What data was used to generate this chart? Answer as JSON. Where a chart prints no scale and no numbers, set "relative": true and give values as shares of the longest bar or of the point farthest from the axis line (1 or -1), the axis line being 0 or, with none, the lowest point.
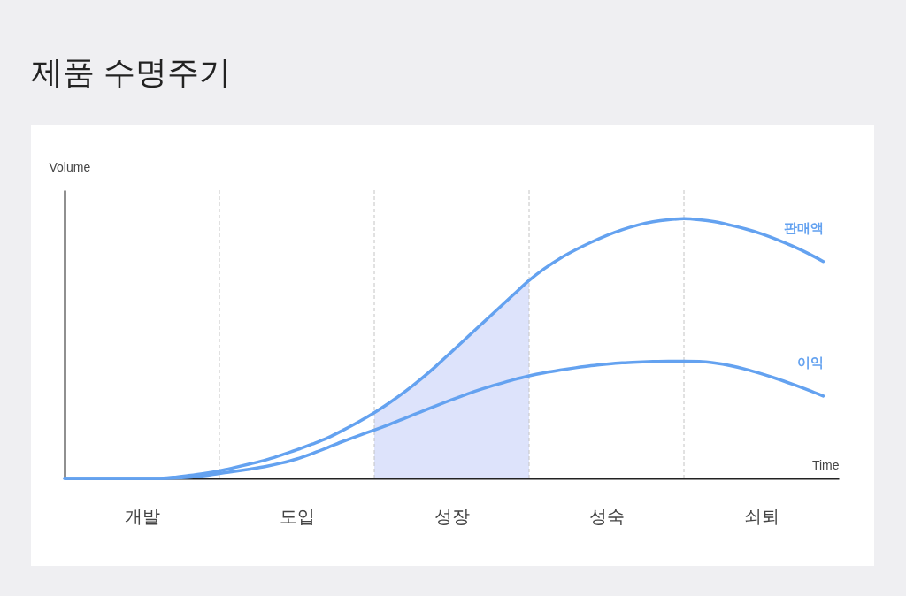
{
  "chart_data": {
    "type": "line",
    "title": "제품 수명주기",
    "xlabel": "Time",
    "ylabel": "Volume",
    "relative": true,
    "categories": [
      null,
      null,
      null,
      null,
      null,
      "개발",
      null,
      null,
      null,
      null,
      null,
      null,
      null,
      null,
      null,
      "도입",
      null,
      null,
      null,
      null,
      null,
      null,
      null,
      null,
      null,
      "성장",
      null,
      null,
      null,
      null,
      null,
      null,
      null,
      null,
      null,
      "성숙",
      null,
      null,
      null,
      null,
      null,
      null,
      null,
      null,
      null,
      "쇠퇴",
      null,
      null,
      null,
      null,
      null
    ],
    "series": [
      {
        "type": "area",
        "color": "#dde3fb",
        "values": [
          null,
          null,
          null,
          null,
          null,
          null,
          null,
          null,
          null,
          null,
          null,
          null,
          null,
          null,
          null,
          null,
          null,
          null,
          null,
          null,
          0.253,
          0.292,
          0.335,
          0.382,
          0.433,
          0.488,
          0.543,
          0.598,
          0.653,
          0.708,
          0.762,
          null,
          null,
          null,
          null,
          null,
          null,
          null,
          null,
          null,
          null,
          null,
          null,
          null,
          null,
          null,
          null,
          null,
          null,
          null,
          null
        ]
      },
      {
        "name": "판매액",
        "color": "#64a2f0",
        "values": [
          0,
          0,
          0,
          0,
          0,
          0,
          0,
          0.004,
          0.011,
          0.019,
          0.029,
          0.042,
          0.056,
          0.071,
          0.09,
          0.11,
          0.132,
          0.156,
          0.186,
          0.218,
          0.253,
          0.292,
          0.335,
          0.382,
          0.433,
          0.488,
          0.543,
          0.598,
          0.653,
          0.708,
          0.762,
          0.808,
          0.847,
          0.88,
          0.909,
          0.935,
          0.957,
          0.975,
          0.988,
          0.996,
          1,
          0.996,
          0.988,
          0.975,
          0.96,
          0.942,
          0.92,
          0.895,
          0.867,
          0.835,
          null
        ]
      },
      {
        "name": "이익",
        "color": "#64a2f0",
        "values": [
          0,
          0,
          0,
          0,
          0,
          0,
          0,
          0.001,
          0.004,
          0.01,
          0.019,
          0.027,
          0.036,
          0.046,
          0.059,
          0.075,
          0.096,
          0.119,
          0.143,
          0.165,
          0.186,
          0.208,
          0.232,
          0.256,
          0.28,
          0.303,
          0.325,
          0.345,
          0.363,
          0.38,
          0.395,
          0.407,
          0.417,
          0.426,
          0.434,
          0.44,
          0.445,
          0.448,
          0.45,
          0.451,
          0.451,
          0.45,
          0.444,
          0.434,
          0.42,
          0.403,
          0.384,
          0.363,
          0.341,
          0.317,
          null
        ]
      }
    ],
    "grid": "x",
    "legend": false,
    "tick_labels": "x"
  }
}
